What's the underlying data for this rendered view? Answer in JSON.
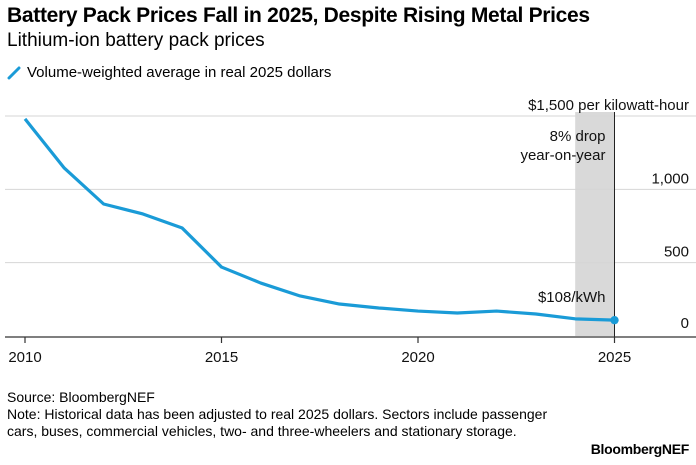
{
  "chart_data": {
    "type": "line",
    "title": "Battery Pack Prices Fall in 2025, Despite Rising Metal Prices",
    "subtitle": "Lithium-ion battery pack prices",
    "xlabel": "",
    "ylabel": "$ per kilowatt-hour",
    "ylim": [
      0,
      1500
    ],
    "xlim": [
      2009.6,
      2027
    ],
    "y_ticks": [
      0,
      500,
      1000,
      1500
    ],
    "y_tick_labels": [
      "0",
      "500",
      "1,000",
      "$1,500 per kilowatt-hour"
    ],
    "x_ticks": [
      2010,
      2015,
      2020,
      2025
    ],
    "x_tick_labels": [
      "2010",
      "2015",
      "2020",
      "2025"
    ],
    "grid": true,
    "legend_position": "top-left",
    "series": [
      {
        "name": "Volume-weighted average in real 2025 dollars",
        "color": "#1a9bd7",
        "x": [
          2010,
          2011,
          2012,
          2013,
          2014,
          2015,
          2016,
          2017,
          2018,
          2019,
          2020,
          2021,
          2022,
          2023,
          2024,
          2025
        ],
        "values": [
          1480,
          1145,
          900,
          832,
          736,
          470,
          361,
          273,
          218,
          191,
          170,
          157,
          170,
          150,
          117,
          108
        ]
      }
    ],
    "highlight_band": {
      "x_start": 2024,
      "x_end": 2025,
      "color": "#d9d9d9"
    },
    "annotations": [
      {
        "text_lines": [
          "8% drop",
          "year-on-year"
        ],
        "x": 2025
      },
      {
        "text": "$108/kWh",
        "x": 2025,
        "y": 108
      }
    ]
  },
  "legend": {
    "label": "Volume-weighted average in real 2025 dollars"
  },
  "footer": {
    "source": "Source: BloombergNEF",
    "note": "Note: Historical data has been adjusted to real 2025 dollars. Sectors include passenger cars, buses, commercial vehicles, two- and three-wheelers and stationary storage."
  },
  "brand": "BloombergNEF"
}
